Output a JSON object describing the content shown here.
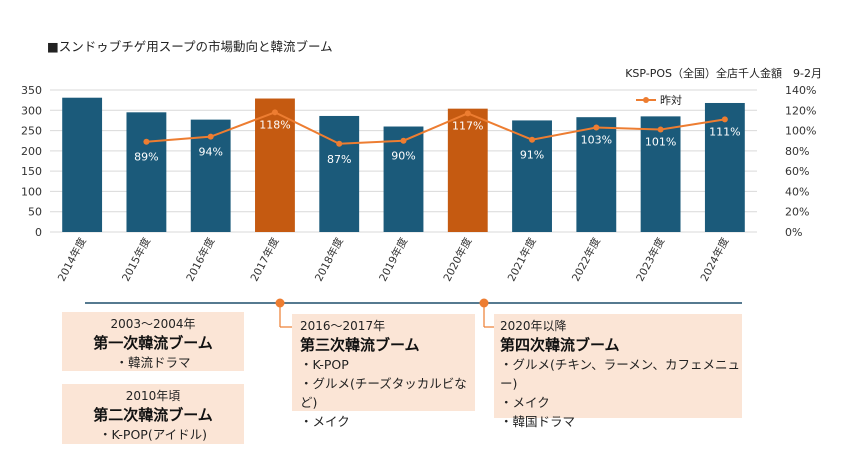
{
  "chart_data": {
    "type": "bar+line",
    "title": "■スンドゥブチゲ用スープの市場動向と韓流ブーム",
    "subtitle": "KSP-POS（全国）全店千人金額　9-2月",
    "categories": [
      "2014年度",
      "2015年度",
      "2016年度",
      "2017年度",
      "2018年度",
      "2019年度",
      "2020年度",
      "2021年度",
      "2022年度",
      "2023年度",
      "2024年度"
    ],
    "bar_values": [
      331,
      295,
      277,
      329,
      286,
      260,
      304,
      275,
      283,
      285,
      318
    ],
    "highlight": [
      false,
      false,
      false,
      true,
      false,
      false,
      true,
      false,
      false,
      false,
      false
    ],
    "yoy_series": {
      "name": "昨対",
      "values": [
        null,
        89,
        94,
        118,
        87,
        90,
        117,
        91,
        103,
        101,
        111
      ],
      "labels": [
        "",
        "89%",
        "94%",
        "118%",
        "87%",
        "90%",
        "117%",
        "91%",
        "103%",
        "101%",
        "111%"
      ]
    },
    "y_left": {
      "ticks": [
        "0",
        "50",
        "100",
        "150",
        "200",
        "250",
        "300",
        "350"
      ],
      "min": 0,
      "max": 350
    },
    "y_right": {
      "ticks": [
        "0%",
        "20%",
        "40%",
        "60%",
        "80%",
        "100%",
        "120%",
        "140%"
      ],
      "min": 0,
      "max": 140
    },
    "colors": {
      "bar": "#1b5a7a",
      "bar_highlight": "#c55a11",
      "line": "#ed7d31",
      "grid": "#d9d9d9",
      "timeline": "#1e4e6b"
    }
  },
  "timeline": {
    "box1": {
      "period": "2003～2004年",
      "boom": "第一次韓流ブーム",
      "items": [
        "・韓流ドラマ"
      ]
    },
    "box2": {
      "period": "2010年頃",
      "boom": "第二次韓流ブーム",
      "items": [
        "・K-POP(アイドル)"
      ]
    },
    "box3": {
      "period": "2016～2017年",
      "boom": "第三次韓流ブーム",
      "items": [
        "・K-POP",
        "・グルメ(チーズタッカルビなど)",
        "・メイク"
      ]
    },
    "box4": {
      "period": "2020年以降",
      "boom": "第四次韓流ブーム",
      "items": [
        "・グルメ(チキン、ラーメン、カフェメニュー)",
        "・メイク",
        "・韓国ドラマ"
      ]
    }
  }
}
